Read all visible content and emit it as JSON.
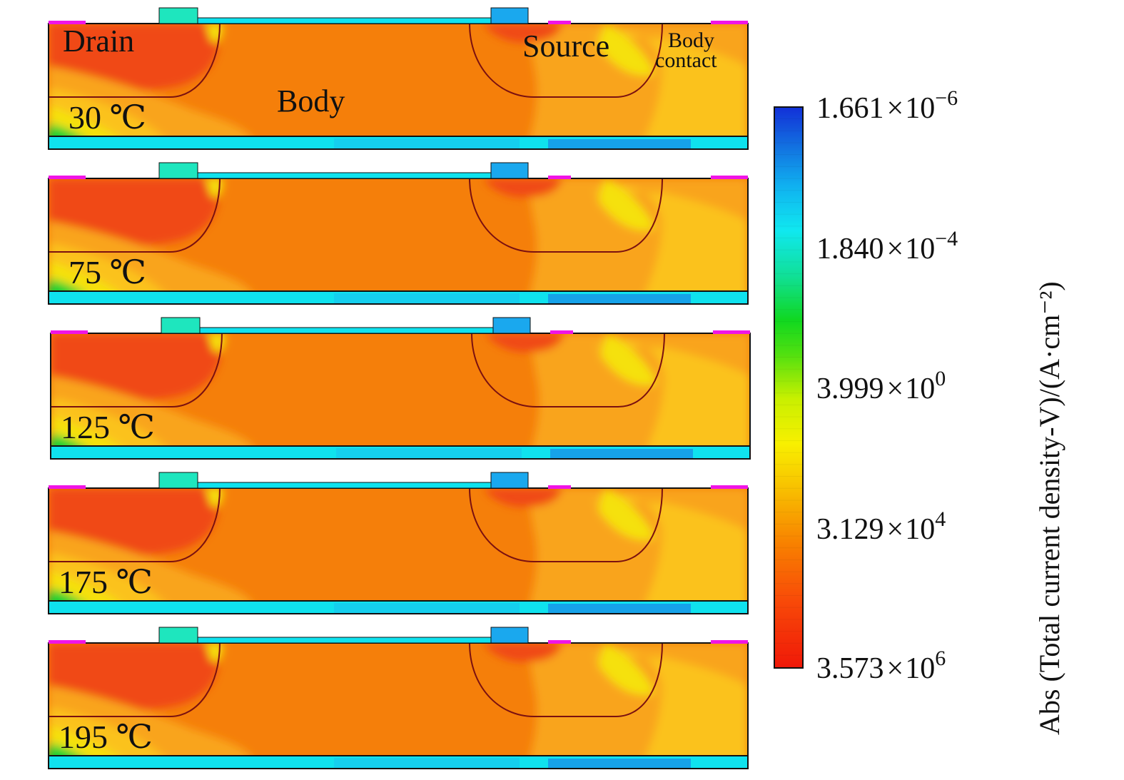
{
  "figure": {
    "region_labels": {
      "drain": "Drain",
      "source": "Source",
      "body_contact_line1": "Body",
      "body_contact_line2": "contact",
      "body": "Body"
    },
    "panels": [
      {
        "temperature": "30 ℃"
      },
      {
        "temperature": "75 ℃"
      },
      {
        "temperature": "125 ℃"
      },
      {
        "temperature": "175 ℃"
      },
      {
        "temperature": "195 ℃"
      }
    ]
  },
  "colorbar": {
    "title": "Abs (Total current density-V)/(A·cm⁻²)",
    "ticks": [
      {
        "mantissa": "1.661",
        "times": "×",
        "base": "10",
        "exponent": "−6"
      },
      {
        "mantissa": "1.840",
        "times": "×",
        "base": "10",
        "exponent": "−4"
      },
      {
        "mantissa": "3.999",
        "times": "×",
        "base": "10",
        "exponent": "0"
      },
      {
        "mantissa": "3.129",
        "times": "×",
        "base": "10",
        "exponent": "4"
      },
      {
        "mantissa": "3.573",
        "times": "×",
        "base": "10",
        "exponent": "6"
      }
    ],
    "colors": {
      "low": "#1230d8",
      "cyan": "#10e8f0",
      "green": "#10d820",
      "yellow": "#f8f000",
      "orange": "#f88000",
      "high": "#f01808"
    }
  },
  "palette": {
    "orange": "#f57f0a",
    "red": "#f04a14",
    "light_orange": "#f9a41c",
    "yellow_orange": "#fbc21a",
    "yellow": "#f5e10a",
    "green": "#19d230",
    "cyan": "#0fe2ee",
    "blue": "#1e6ee6",
    "magenta": "#f014e6",
    "teal": "#1ee6be",
    "junction": "#7a1010"
  }
}
